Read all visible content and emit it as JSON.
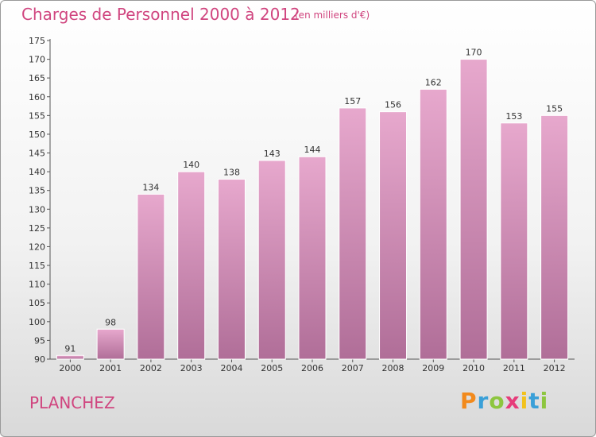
{
  "title": "Charges de Personnel 2000 à 2012",
  "subtitle": "(en milliers d'€)",
  "place": "PLANCHEZ",
  "logo": {
    "letters": [
      "P",
      "r",
      "o",
      "x",
      "i",
      "t",
      "i"
    ],
    "colors": [
      "#f28a1c",
      "#3aa0d8",
      "#8dc63f",
      "#e63c7a",
      "#f2c21c",
      "#3aa0d8",
      "#8dc63f"
    ]
  },
  "colors": {
    "accent": "#d0457f",
    "bar_top": "#e7a8cd",
    "bar_bottom": "#b06e98"
  },
  "chart_data": {
    "type": "bar",
    "title": "Charges de Personnel 2000 à 2012",
    "subtitle": "(en milliers d'€)",
    "categories": [
      "2000",
      "2001",
      "2002",
      "2003",
      "2004",
      "2005",
      "2006",
      "2007",
      "2008",
      "2009",
      "2010",
      "2011",
      "2012"
    ],
    "values": [
      91,
      98,
      134,
      140,
      138,
      143,
      144,
      157,
      156,
      162,
      170,
      153,
      155
    ],
    "ylim": [
      90,
      175
    ],
    "yticks": [
      90,
      95,
      100,
      105,
      110,
      115,
      120,
      125,
      130,
      135,
      140,
      145,
      150,
      155,
      160,
      165,
      170,
      175
    ],
    "grid": false
  }
}
